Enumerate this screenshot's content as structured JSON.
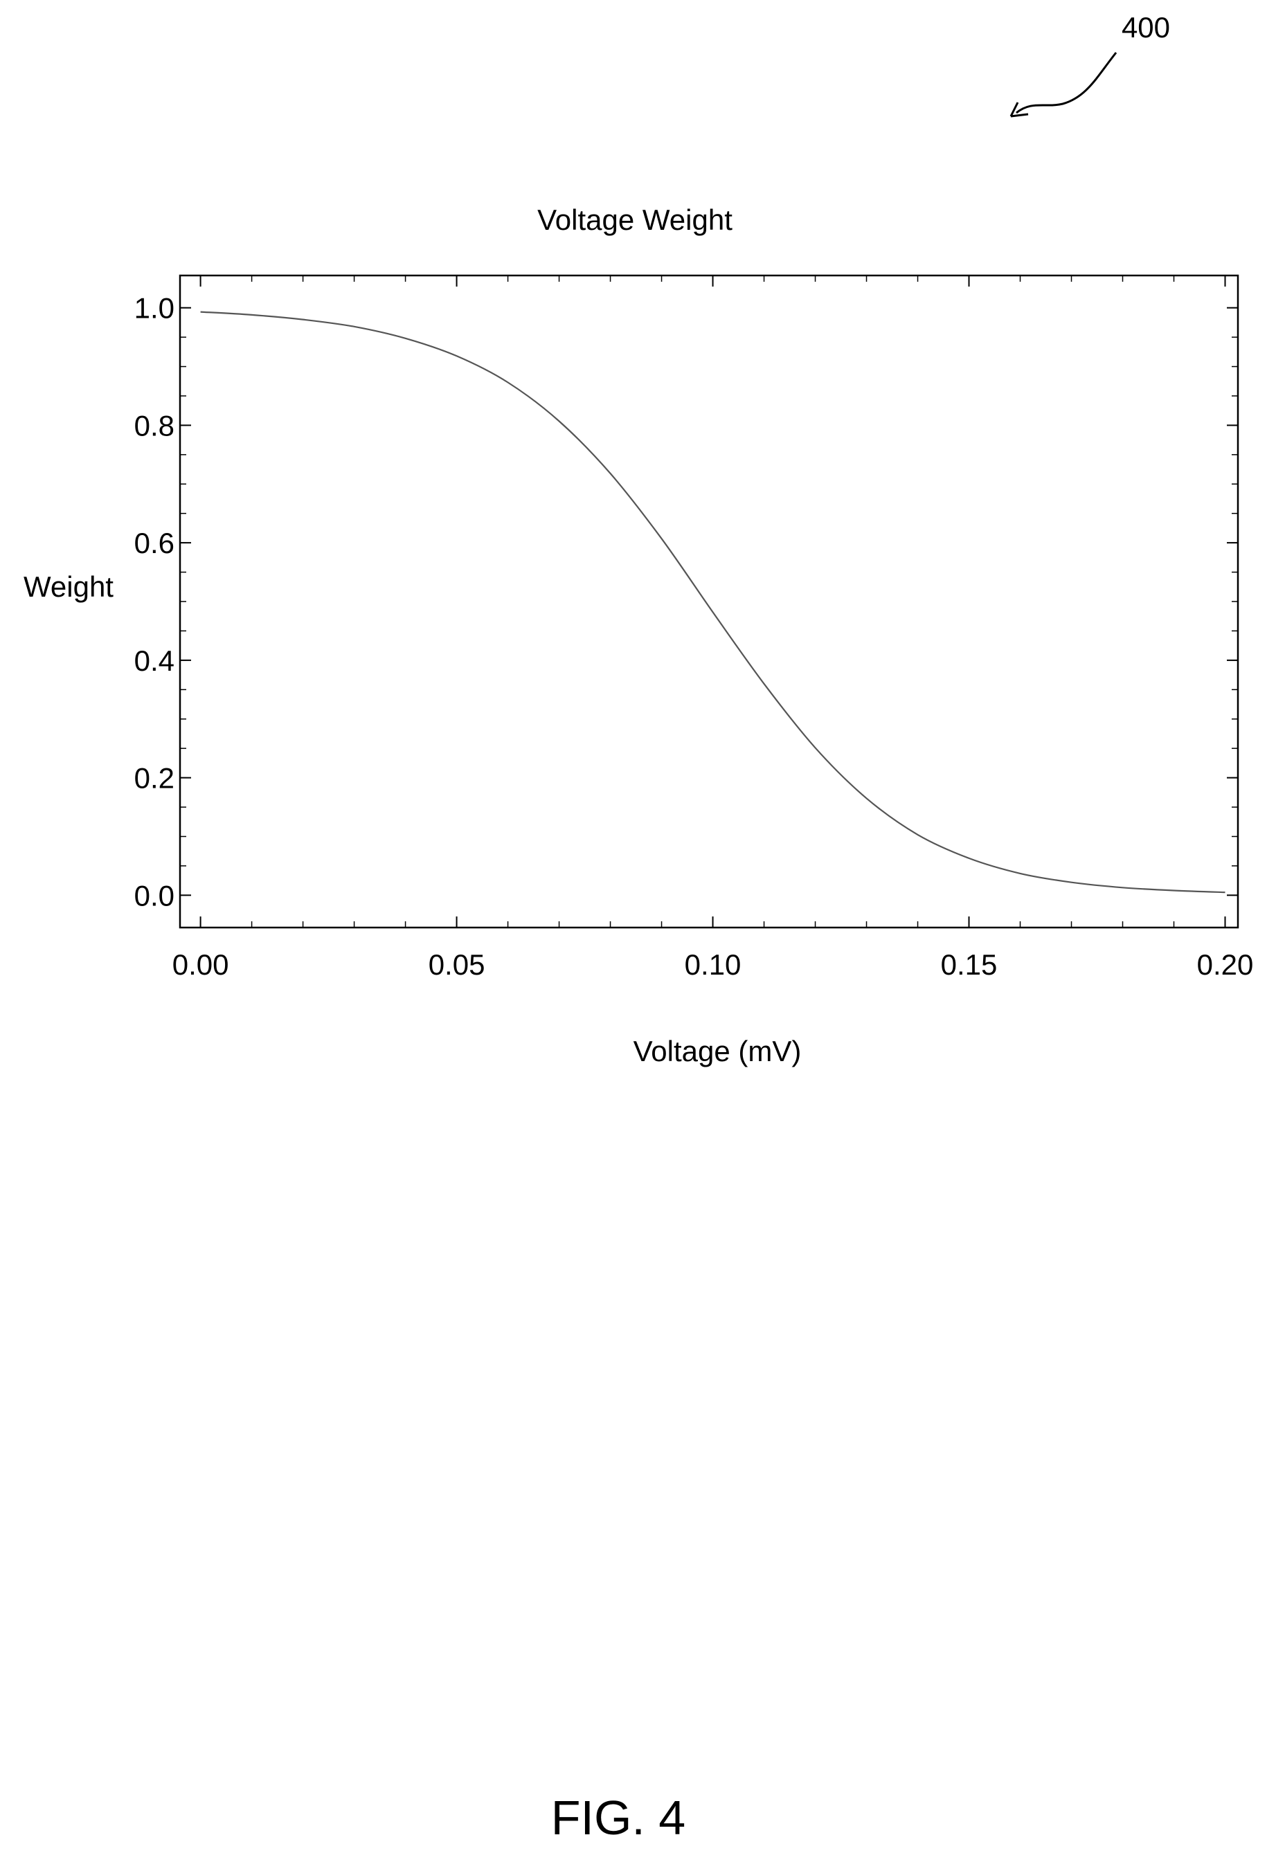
{
  "figure": {
    "reference_number": "400",
    "caption": "FIG. 4"
  },
  "colors": {
    "background": "#ffffff",
    "ink": "#000000",
    "curve": "#555555"
  },
  "chart_data": {
    "type": "line",
    "title": "Voltage Weight",
    "xlabel": "Voltage (mV)",
    "ylabel": "Weight",
    "xlim": [
      -0.004,
      0.2025
    ],
    "ylim": [
      -0.055,
      1.055
    ],
    "grid": false,
    "legend": "none",
    "x_ticks": [
      {
        "value": 0.0,
        "label": "0.00"
      },
      {
        "value": 0.05,
        "label": "0.05"
      },
      {
        "value": 0.1,
        "label": "0.10"
      },
      {
        "value": 0.15,
        "label": "0.15"
      },
      {
        "value": 0.2,
        "label": "0.20"
      }
    ],
    "y_ticks": [
      {
        "value": 0.0,
        "label": "0.0"
      },
      {
        "value": 0.2,
        "label": "0.2"
      },
      {
        "value": 0.4,
        "label": "0.4"
      },
      {
        "value": 0.6,
        "label": "0.6"
      },
      {
        "value": 0.8,
        "label": "0.8"
      },
      {
        "value": 1.0,
        "label": "1.0"
      }
    ],
    "series": [
      {
        "x": [
          0.0,
          0.01,
          0.02,
          0.03,
          0.04,
          0.05,
          0.06,
          0.07,
          0.08,
          0.09,
          0.1,
          0.11,
          0.12,
          0.13,
          0.14,
          0.15,
          0.16,
          0.17,
          0.18,
          0.19,
          0.2
        ],
        "y": [
          0.993,
          0.988,
          0.98,
          0.968,
          0.948,
          0.918,
          0.873,
          0.807,
          0.718,
          0.607,
          0.482,
          0.36,
          0.251,
          0.165,
          0.103,
          0.063,
          0.037,
          0.022,
          0.013,
          0.008,
          0.005
        ]
      }
    ]
  }
}
